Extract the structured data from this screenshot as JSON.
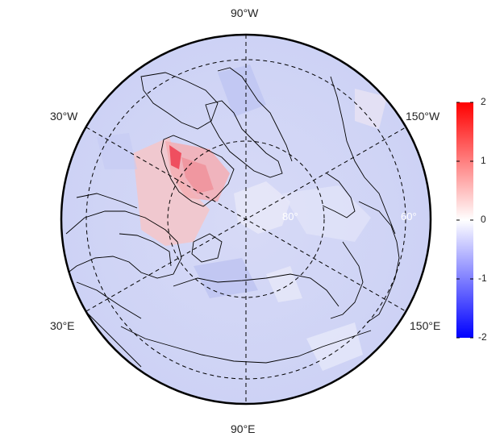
{
  "map": {
    "projection": "north polar stereographic",
    "longitude_labels": {
      "top": "90°W",
      "bottom": "90°E",
      "upper_left": "30°W",
      "lower_left": "30°E",
      "upper_right": "150°W",
      "lower_right": "150°E"
    },
    "latitude_labels": {
      "inner_left": "80°",
      "inner_right": "60°"
    }
  },
  "colorbar": {
    "ticks": [
      "2",
      "1",
      "0",
      "-1",
      "-2"
    ],
    "range": [
      -2,
      2
    ],
    "colors": {
      "high": "#ff0000",
      "mid": "#ffffff",
      "low": "#0000ff"
    }
  }
}
